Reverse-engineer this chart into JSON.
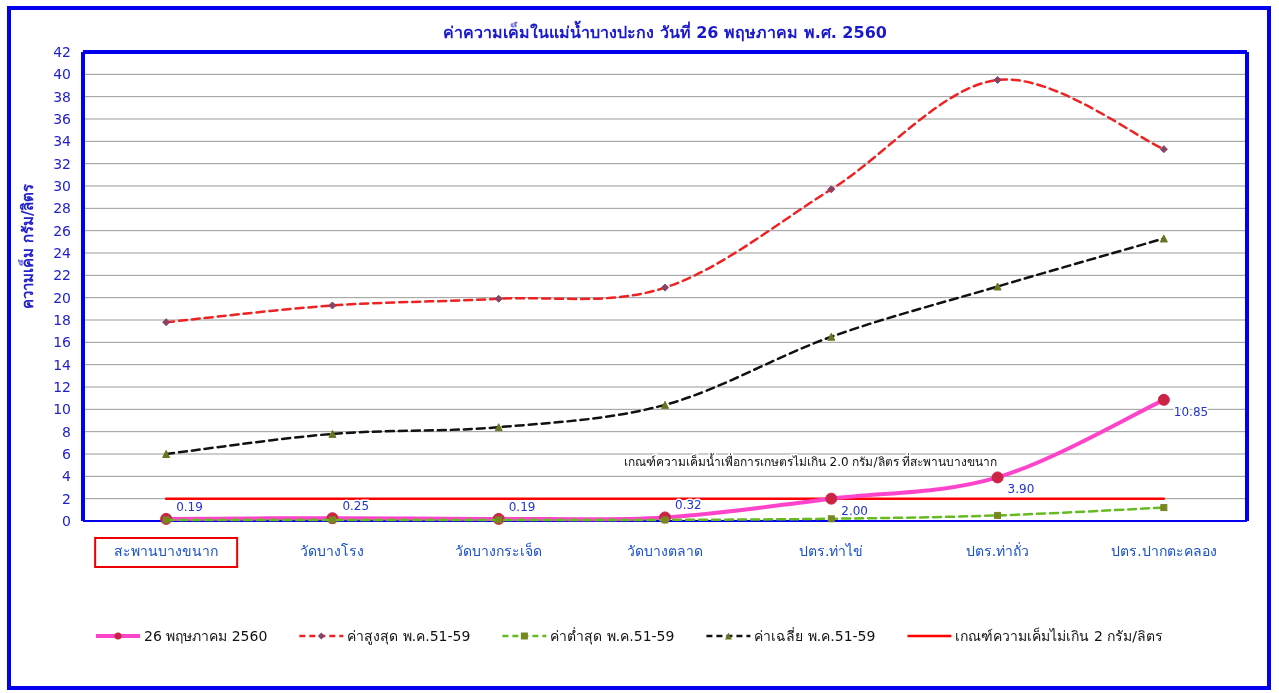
{
  "chart_data": {
    "type": "line",
    "title": "ค่าความเค็มในแม่น้ำบางปะกง วันที่ 26 พฤษภาคม พ.ศ. 2560",
    "ylabel": "ความเค็ม กรัม/ลิตร",
    "categories": [
      "สะพานบางขนาก",
      "วัดบางโรง",
      "วัดบางกระเจ็ด",
      "วัดบางตลาด",
      "ปตร.ท่าไข่",
      "ปตร.ท่าถั่ว",
      "ปตร.ปากตะคลอง"
    ],
    "ylim": [
      0,
      42
    ],
    "yticks": [
      0,
      2,
      4,
      6,
      8,
      10,
      12,
      14,
      16,
      18,
      20,
      22,
      24,
      26,
      28,
      30,
      32,
      34,
      36,
      38,
      40,
      42
    ],
    "grid": "y",
    "legend": "bottom",
    "series": [
      {
        "name": "26 พฤษภาคม 2560",
        "color": "#ff44cc",
        "values": [
          0.19,
          0.25,
          0.19,
          0.32,
          2.0,
          3.9,
          10.85
        ],
        "marker": "circle",
        "line_style": "solid",
        "value_labels": [
          "0.19",
          "0.25",
          "0.19",
          "0.32",
          "2.00",
          "3.90",
          "10.85"
        ]
      },
      {
        "name": "ค่าสูงสุด พ.ค.51-59",
        "color": "#ee2222",
        "values": [
          17.8,
          19.3,
          19.9,
          20.9,
          29.7,
          39.5,
          33.3
        ],
        "marker": "diamond",
        "line_style": "dashed"
      },
      {
        "name": "ค่าต่ำสุด พ.ค.51-59",
        "color": "#66bb22",
        "values": [
          0.1,
          0.1,
          0.1,
          0.1,
          0.2,
          0.5,
          1.2
        ],
        "marker": "square",
        "line_style": "dashed"
      },
      {
        "name": "ค่าเฉลี่ย  พ.ค.51-59",
        "color": "#111111",
        "values": [
          6.0,
          7.8,
          8.4,
          10.4,
          16.5,
          21.0,
          25.3
        ],
        "marker": "triangle",
        "line_style": "dashed"
      },
      {
        "name": "เกณฑ์ความเค็มไม่เกิน 2 กรัม/ลิตร",
        "color": "#ff0000",
        "values": [
          2,
          2,
          2,
          2,
          2,
          2,
          2
        ],
        "marker": "none",
        "line_style": "solid"
      }
    ],
    "annotations": [
      {
        "text": "เกณฑ์ความเค็มน้ำเพื่อการเกษตรไม่เกิน 2.0 กรัม/ลิตร ที่สะพานบางขนาก",
        "x": "ปตร.ท่าถั่ว",
        "y": 2
      }
    ]
  }
}
